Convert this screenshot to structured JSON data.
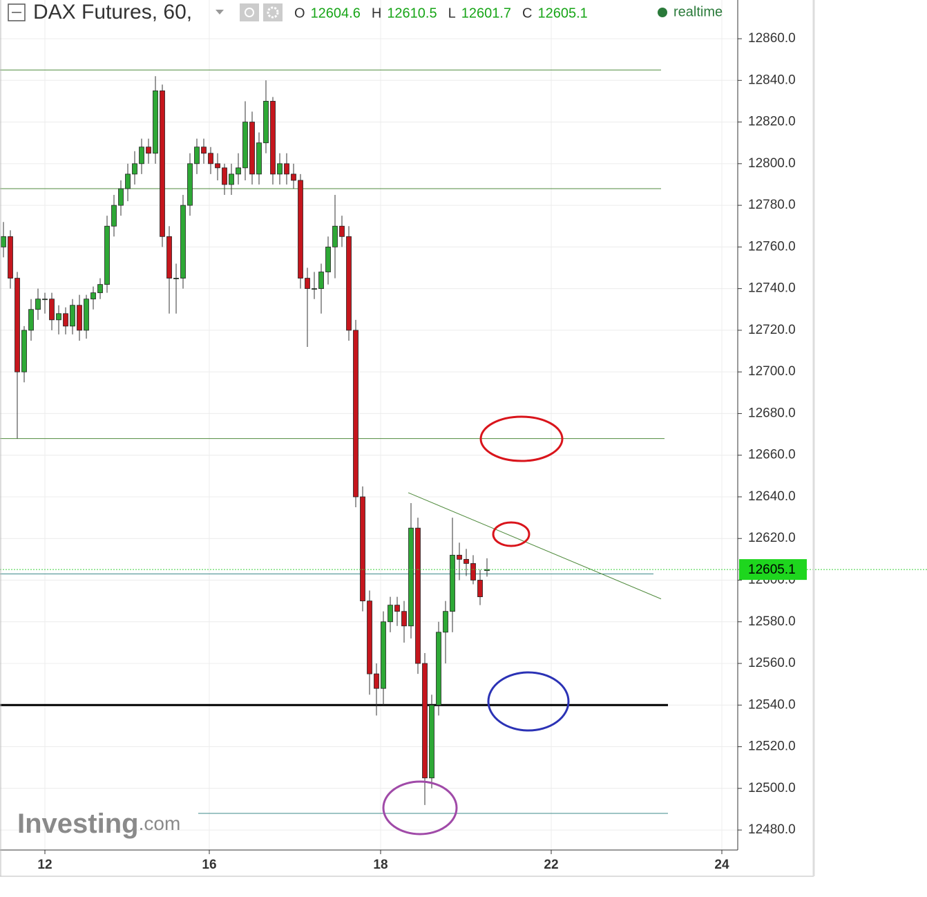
{
  "chart_data": {
    "type": "candlestick",
    "title": "DAX Futures, 60,",
    "legend": [
      {
        "label": "O",
        "value": 12604.6
      },
      {
        "label": "H",
        "value": 12610.5
      },
      {
        "label": "L",
        "value": 12601.7
      },
      {
        "label": "C",
        "value": 12605.1
      }
    ],
    "status": "realtime",
    "watermark": [
      "Investing",
      ".com"
    ],
    "last_price": 12605.1,
    "up_color": "#2ea836",
    "down_color": "#c5161d",
    "open": [
      12760,
      12765,
      12745,
      12700,
      12720,
      12730,
      12735,
      12735,
      12725,
      12728,
      12722,
      12732,
      12720,
      12735,
      12738,
      12742,
      12770,
      12780,
      12788,
      12795,
      12800,
      12808,
      12805,
      12835,
      12765,
      12745,
      12745,
      12780,
      12800,
      12808,
      12805,
      12800,
      12798,
      12790,
      12795,
      12798,
      12820,
      12795,
      12810,
      12830,
      12795,
      12800,
      12795,
      12792,
      12745,
      12740,
      12740,
      12748,
      12760,
      12770,
      12765,
      12720,
      12640,
      12590,
      12555,
      12548,
      12580,
      12588,
      12585,
      12578,
      12625,
      12560,
      12505,
      12540,
      12575,
      12585,
      12612,
      12610,
      12608,
      12600,
      12604.6
    ],
    "high": [
      12772,
      12768,
      12748,
      12722,
      12735,
      12740,
      12738,
      12738,
      12732,
      12731,
      12735,
      12737,
      12737,
      12741,
      12745,
      12775,
      12785,
      12792,
      12800,
      12806,
      12812,
      12812,
      12842,
      12838,
      12770,
      12752,
      12785,
      12805,
      12812,
      12812,
      12808,
      12805,
      12800,
      12800,
      12805,
      12830,
      12825,
      12815,
      12840,
      12832,
      12805,
      12805,
      12800,
      12795,
      12750,
      12748,
      12752,
      12765,
      12785,
      12775,
      12770,
      12725,
      12645,
      12595,
      12560,
      12585,
      12592,
      12592,
      12590,
      12637,
      12630,
      12565,
      12545,
      12580,
      12590,
      12630,
      12618,
      12615,
      12612,
      12605,
      12610.5
    ],
    "low": [
      12755,
      12740,
      12668,
      12695,
      12715,
      12725,
      12728,
      12720,
      12718,
      12718,
      12718,
      12715,
      12716,
      12730,
      12735,
      12738,
      12765,
      12775,
      12782,
      12790,
      12795,
      12800,
      12800,
      12760,
      12728,
      12728,
      12740,
      12775,
      12795,
      12800,
      12795,
      12792,
      12785,
      12785,
      12790,
      12792,
      12790,
      12790,
      12805,
      12790,
      12790,
      12790,
      12788,
      12740,
      12712,
      12735,
      12728,
      12742,
      12745,
      12760,
      12715,
      12635,
      12585,
      12545,
      12535,
      12540,
      12575,
      12578,
      12570,
      12572,
      12555,
      12492,
      12500,
      12535,
      12560,
      12575,
      12600,
      12602,
      12598,
      12588,
      12601.7
    ],
    "close": [
      12765,
      12745,
      12700,
      12720,
      12730,
      12735,
      12735,
      12725,
      12728,
      12722,
      12732,
      12720,
      12735,
      12738,
      12742,
      12770,
      12780,
      12788,
      12795,
      12800,
      12808,
      12805,
      12835,
      12765,
      12745,
      12745,
      12780,
      12800,
      12808,
      12805,
      12800,
      12798,
      12790,
      12795,
      12798,
      12820,
      12795,
      12810,
      12830,
      12795,
      12800,
      12795,
      12792,
      12745,
      12740,
      12740,
      12748,
      12760,
      12770,
      12765,
      12720,
      12640,
      12590,
      12555,
      12548,
      12580,
      12588,
      12585,
      12578,
      12625,
      12560,
      12505,
      12540,
      12575,
      12585,
      12612,
      12610,
      12608,
      12600,
      12592,
      12605.1
    ],
    "lines": [
      {
        "x": [
          -0.5,
          95.2
        ],
        "y": [
          12845,
          12845
        ],
        "color": "#4f8a3c",
        "width": 1
      },
      {
        "x": [
          -0.5,
          95.2
        ],
        "y": [
          12788,
          12788
        ],
        "color": "#4f8a3c",
        "width": 1
      },
      {
        "x": [
          -0.5,
          95.7
        ],
        "y": [
          12668,
          12668
        ],
        "color": "#4f8a3c",
        "width": 1
      },
      {
        "x": [
          -0.5,
          94.1
        ],
        "y": [
          12603,
          12603
        ],
        "color": "#3d8a8a",
        "width": 1
      },
      {
        "x": [
          -0.5,
          96.2
        ],
        "y": [
          12540,
          12540
        ],
        "color": "#000000",
        "width": 3
      },
      {
        "x": [
          28.2,
          96.2
        ],
        "y": [
          12488,
          12488
        ],
        "color": "#3d8a8a",
        "width": 1
      },
      {
        "x": [
          58.6,
          95.2
        ],
        "y": [
          12642,
          12591
        ],
        "color": "#4f8a3c",
        "width": 1
      }
    ],
    "xlim": [
      -0.5,
      106.3
    ],
    "xticks": [
      {
        "value": 6,
        "label": "12"
      },
      {
        "value": 29.8,
        "label": "16"
      },
      {
        "value": 54.6,
        "label": "18"
      },
      {
        "value": 79.3,
        "label": "22"
      },
      {
        "value": 104,
        "label": "24"
      }
    ],
    "ylim": [
      12470.4,
      12878.6
    ],
    "yticks": [
      {
        "value": 12480,
        "label": "12480.0"
      },
      {
        "value": 12500,
        "label": "12500.0"
      },
      {
        "value": 12520,
        "label": "12520.0"
      },
      {
        "value": 12540,
        "label": "12540.0"
      },
      {
        "value": 12560,
        "label": "12560.0"
      },
      {
        "value": 12580,
        "label": "12580.0"
      },
      {
        "value": 12600,
        "label": "12600.0"
      },
      {
        "value": 12620,
        "label": "12620.0"
      },
      {
        "value": 12640,
        "label": "12640.0"
      },
      {
        "value": 12660,
        "label": "12660.0"
      },
      {
        "value": 12680,
        "label": "12680.0"
      },
      {
        "value": 12700,
        "label": "12700.0"
      },
      {
        "value": 12720,
        "label": "12720.0"
      },
      {
        "value": 12740,
        "label": "12740.0"
      },
      {
        "value": 12760,
        "label": "12760.0"
      },
      {
        "value": 12780,
        "label": "12780.0"
      },
      {
        "value": 12800,
        "label": "12800.0"
      },
      {
        "value": 12820,
        "label": "12820.0"
      },
      {
        "value": 12840,
        "label": "12840.0"
      },
      {
        "value": 12860,
        "label": "12860.0"
      }
    ],
    "grid": true
  }
}
